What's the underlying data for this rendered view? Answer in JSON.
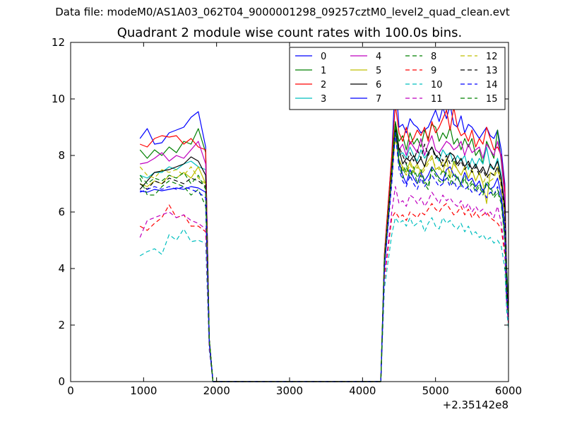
{
  "supertitle": "Data file: modeM0/AS1A03_062T04_9000001298_09257cztM0_level2_quad_clean.evt",
  "chart_data": {
    "type": "line",
    "title": "Quadrant 2 module wise count rates with 100.0s bins.",
    "xlabel": "",
    "ylabel": "",
    "xlim": [
      0,
      6000
    ],
    "ylim": [
      0,
      12
    ],
    "x_offset_label": "+2.35142e8",
    "xticks": [
      0,
      1000,
      2000,
      3000,
      4000,
      5000,
      6000
    ],
    "yticks": [
      0,
      2,
      4,
      6,
      8,
      10,
      12
    ],
    "grid": false,
    "legend_position": "top-right",
    "legend_columns": 4,
    "x": [
      950,
      1050,
      1150,
      1250,
      1350,
      1450,
      1550,
      1650,
      1750,
      1850,
      1900,
      1950,
      2000,
      2100,
      2500,
      3000,
      3500,
      4000,
      4250,
      4300,
      4400,
      4450,
      4500,
      4550,
      4600,
      4650,
      4700,
      4750,
      4800,
      4850,
      4900,
      4950,
      5000,
      5050,
      5100,
      5150,
      5200,
      5250,
      5300,
      5350,
      5400,
      5450,
      5500,
      5550,
      5600,
      5650,
      5700,
      5750,
      5800,
      5850,
      5900,
      5950,
      5975,
      6000
    ],
    "series": [
      {
        "name": "0",
        "color": "#0000ff",
        "dash": "solid",
        "values": [
          8.6,
          8.95,
          8.4,
          8.45,
          8.8,
          8.9,
          9.0,
          9.35,
          9.55,
          8.3,
          1.5,
          0,
          0,
          0,
          0,
          0,
          0,
          0,
          0,
          4.5,
          8.0,
          10.8,
          9.0,
          9.1,
          8.8,
          9.3,
          9.1,
          9.0,
          8.8,
          8.9,
          9.0,
          9.3,
          9.6,
          9.2,
          9.7,
          9.3,
          9.8,
          9.1,
          9.0,
          9.4,
          8.8,
          9.1,
          9.0,
          8.8,
          8.6,
          8.8,
          9.0,
          8.7,
          8.6,
          8.9,
          8.2,
          7.0,
          4.0,
          2.8
        ]
      },
      {
        "name": "1",
        "color": "#008000",
        "dash": "solid",
        "values": [
          8.2,
          7.9,
          8.2,
          8.0,
          8.3,
          8.1,
          8.5,
          8.4,
          8.95,
          8.1,
          1.5,
          0,
          0,
          0,
          0,
          0,
          0,
          0,
          0,
          4.4,
          7.8,
          9.2,
          8.5,
          8.7,
          8.2,
          8.8,
          8.4,
          8.6,
          8.3,
          8.9,
          8.6,
          9.1,
          9.0,
          8.5,
          8.8,
          8.6,
          9.0,
          8.4,
          8.6,
          8.2,
          8.6,
          8.3,
          8.6,
          8.0,
          8.2,
          7.7,
          8.5,
          8.2,
          7.9,
          8.9,
          7.8,
          6.5,
          4.0,
          2.8
        ]
      },
      {
        "name": "2",
        "color": "#ff0000",
        "dash": "solid",
        "values": [
          8.4,
          8.3,
          8.6,
          8.7,
          8.65,
          8.7,
          8.4,
          8.6,
          8.3,
          8.2,
          1.5,
          0,
          0,
          0,
          0,
          0,
          0,
          0,
          0,
          4.5,
          8.0,
          9.8,
          8.8,
          8.5,
          9.0,
          8.4,
          8.6,
          8.9,
          8.7,
          9.0,
          8.5,
          9.2,
          8.8,
          9.0,
          9.3,
          9.6,
          8.9,
          9.7,
          9.0,
          8.7,
          8.8,
          8.5,
          8.9,
          8.3,
          8.6,
          8.4,
          9.0,
          8.6,
          8.2,
          8.3,
          8.0,
          6.8,
          3.5,
          2.6
        ]
      },
      {
        "name": "3",
        "color": "#00bfbf",
        "dash": "solid",
        "values": [
          7.3,
          7.2,
          7.4,
          7.4,
          7.6,
          7.5,
          7.7,
          7.8,
          7.6,
          7.5,
          1.5,
          0,
          0,
          0,
          0,
          0,
          0,
          0,
          0,
          4.3,
          7.5,
          9.0,
          8.0,
          8.1,
          7.9,
          8.3,
          8.0,
          7.8,
          8.2,
          7.9,
          8.1,
          8.3,
          8.0,
          7.8,
          8.2,
          8.0,
          8.1,
          7.7,
          8.0,
          7.8,
          8.0,
          7.5,
          7.9,
          7.6,
          7.9,
          7.7,
          8.3,
          7.6,
          7.5,
          7.9,
          7.3,
          6.0,
          3.2,
          2.3
        ]
      },
      {
        "name": "4",
        "color": "#bf00bf",
        "dash": "solid",
        "values": [
          7.7,
          7.75,
          7.9,
          8.1,
          7.8,
          8.0,
          7.9,
          8.2,
          8.5,
          7.7,
          1.5,
          0,
          0,
          0,
          0,
          0,
          0,
          0,
          0,
          4.2,
          7.5,
          9.0,
          8.2,
          8.4,
          8.0,
          8.5,
          8.3,
          8.1,
          8.6,
          8.0,
          8.4,
          8.7,
          8.2,
          8.1,
          8.3,
          8.5,
          8.4,
          8.2,
          8.3,
          8.5,
          8.0,
          8.4,
          8.1,
          8.2,
          8.3,
          7.9,
          8.4,
          8.2,
          8.0,
          8.5,
          7.9,
          6.5,
          3.6,
          2.5
        ]
      },
      {
        "name": "5",
        "color": "#bfbf00",
        "dash": "solid",
        "values": [
          7.0,
          6.9,
          7.1,
          7.0,
          7.3,
          7.2,
          7.4,
          7.2,
          7.6,
          7.0,
          1.5,
          0,
          0,
          0,
          0,
          0,
          0,
          0,
          0,
          4.1,
          7.2,
          8.9,
          7.8,
          7.6,
          7.4,
          7.8,
          7.5,
          7.7,
          7.4,
          7.6,
          7.8,
          8.0,
          7.5,
          7.6,
          7.4,
          7.9,
          7.2,
          7.8,
          7.5,
          7.3,
          7.6,
          7.2,
          7.5,
          7.1,
          7.4,
          7.0,
          6.3,
          7.4,
          7.3,
          7.6,
          7.0,
          6.0,
          3.4,
          2.3
        ]
      },
      {
        "name": "6",
        "color": "#000000",
        "dash": "solid",
        "values": [
          6.8,
          7.1,
          7.4,
          7.45,
          7.5,
          7.6,
          7.7,
          7.95,
          7.8,
          7.3,
          1.5,
          0,
          0,
          0,
          0,
          0,
          0,
          0,
          0,
          4.2,
          7.5,
          9.1,
          8.2,
          7.7,
          7.9,
          7.8,
          8.0,
          7.7,
          7.9,
          7.6,
          8.1,
          8.3,
          8.0,
          7.9,
          7.6,
          7.8,
          8.1,
          8.0,
          7.7,
          7.9,
          7.6,
          7.8,
          7.5,
          7.7,
          7.4,
          7.6,
          7.3,
          7.7,
          7.5,
          7.8,
          7.2,
          6.2,
          3.5,
          2.4
        ]
      },
      {
        "name": "7",
        "color": "#0000ff",
        "dash": "solid",
        "values": [
          6.75,
          6.7,
          6.8,
          6.75,
          6.8,
          6.85,
          6.8,
          6.9,
          6.85,
          6.7,
          1.4,
          0,
          0,
          0,
          0,
          0,
          0,
          0,
          0,
          4.0,
          7.2,
          8.9,
          7.8,
          7.3,
          7.0,
          7.5,
          7.2,
          7.0,
          7.4,
          7.1,
          7.3,
          7.6,
          7.4,
          7.2,
          7.1,
          7.5,
          7.6,
          7.3,
          7.2,
          7.0,
          7.4,
          7.1,
          7.2,
          6.9,
          7.1,
          6.7,
          7.0,
          6.8,
          6.9,
          7.2,
          6.6,
          5.5,
          3.2,
          2.2
        ]
      },
      {
        "name": "8",
        "color": "#008000",
        "dash": "dashed",
        "values": [
          7.2,
          6.6,
          6.6,
          6.9,
          7.1,
          7.0,
          6.9,
          6.6,
          6.8,
          6.2,
          1.4,
          0,
          0,
          0,
          0,
          0,
          0,
          0,
          0,
          4.3,
          7.4,
          9.0,
          7.7,
          7.2,
          7.6,
          7.2,
          7.5,
          7.0,
          7.3,
          7.0,
          6.8,
          7.5,
          7.3,
          7.1,
          7.0,
          7.4,
          7.2,
          7.0,
          7.3,
          6.9,
          7.2,
          6.8,
          7.0,
          6.7,
          6.9,
          6.6,
          7.0,
          6.8,
          6.5,
          6.7,
          6.3,
          5.0,
          3.0,
          2.3
        ]
      },
      {
        "name": "9",
        "color": "#ff0000",
        "dash": "dashed",
        "values": [
          5.5,
          5.35,
          5.6,
          5.8,
          6.25,
          5.8,
          5.9,
          5.5,
          5.5,
          5.3,
          1.2,
          0,
          0,
          0,
          0,
          0,
          0,
          0,
          0,
          3.6,
          5.8,
          6.0,
          5.8,
          5.9,
          5.7,
          6.0,
          5.9,
          5.8,
          6.0,
          5.9,
          6.1,
          6.3,
          6.1,
          6.0,
          6.2,
          6.3,
          6.1,
          5.9,
          6.0,
          6.2,
          5.9,
          6.1,
          5.8,
          6.0,
          5.8,
          5.9,
          6.0,
          5.8,
          5.7,
          5.6,
          5.4,
          4.5,
          2.8,
          2.0
        ]
      },
      {
        "name": "10",
        "color": "#00bfbf",
        "dash": "dashed",
        "values": [
          4.45,
          4.6,
          4.7,
          4.5,
          5.2,
          5.0,
          5.4,
          4.95,
          5.0,
          4.9,
          1.1,
          0,
          0,
          0,
          0,
          0,
          0,
          0,
          0,
          3.3,
          5.2,
          5.8,
          5.6,
          5.7,
          5.5,
          5.8,
          5.5,
          5.6,
          5.7,
          5.3,
          5.6,
          5.8,
          5.5,
          5.4,
          5.8,
          5.6,
          5.7,
          5.5,
          5.4,
          5.6,
          5.3,
          5.5,
          5.2,
          5.3,
          5.1,
          5.2,
          5.0,
          5.1,
          4.9,
          5.0,
          4.8,
          4.0,
          2.5,
          1.9
        ]
      },
      {
        "name": "11",
        "color": "#bf00bf",
        "dash": "dashed",
        "values": [
          5.1,
          5.7,
          5.8,
          5.9,
          6.0,
          5.8,
          5.9,
          5.7,
          5.6,
          5.4,
          1.2,
          0,
          0,
          0,
          0,
          0,
          0,
          0,
          0,
          3.7,
          6.0,
          6.9,
          6.3,
          6.4,
          6.2,
          6.6,
          6.5,
          6.3,
          6.5,
          6.2,
          6.4,
          6.7,
          6.5,
          6.3,
          6.6,
          6.4,
          6.5,
          6.3,
          6.2,
          6.4,
          6.1,
          6.3,
          6.0,
          6.2,
          6.0,
          6.1,
          5.9,
          6.0,
          5.8,
          6.2,
          5.6,
          4.7,
          2.8,
          2.1
        ]
      },
      {
        "name": "12",
        "color": "#bfbf00",
        "dash": "dashed",
        "values": [
          7.6,
          7.3,
          7.2,
          7.5,
          7.4,
          7.5,
          7.3,
          7.6,
          7.2,
          7.0,
          1.5,
          0,
          0,
          0,
          0,
          0,
          0,
          0,
          0,
          4.2,
          7.3,
          8.6,
          7.9,
          7.5,
          7.3,
          7.7,
          7.4,
          7.6,
          7.3,
          7.5,
          7.7,
          7.9,
          7.6,
          7.5,
          7.8,
          7.6,
          7.4,
          7.7,
          7.5,
          7.3,
          7.6,
          7.2,
          7.5,
          7.1,
          7.4,
          7.0,
          7.3,
          7.1,
          7.2,
          7.5,
          6.9,
          5.8,
          3.3,
          2.3
        ]
      },
      {
        "name": "13",
        "color": "#000000",
        "dash": "dashed",
        "values": [
          7.0,
          6.8,
          7.1,
          7.0,
          7.2,
          7.1,
          7.0,
          7.2,
          7.1,
          6.9,
          1.5,
          0,
          0,
          0,
          0,
          0,
          0,
          0,
          0,
          4.2,
          7.4,
          8.9,
          8.3,
          8.0,
          7.7,
          8.1,
          7.8,
          8.2,
          7.9,
          8.4,
          8.0,
          8.3,
          7.9,
          8.1,
          7.8,
          8.0,
          7.7,
          7.9,
          7.6,
          7.8,
          7.5,
          7.7,
          7.4,
          7.6,
          7.3,
          7.5,
          7.2,
          7.4,
          7.3,
          7.6,
          7.0,
          6.0,
          3.4,
          2.4
        ]
      },
      {
        "name": "14",
        "color": "#0000ff",
        "dash": "dashed",
        "values": [
          6.7,
          6.8,
          6.9,
          6.8,
          6.9,
          6.8,
          6.9,
          6.8,
          6.7,
          6.5,
          1.4,
          0,
          0,
          0,
          0,
          0,
          0,
          0,
          0,
          4.0,
          7.0,
          8.8,
          7.5,
          7.1,
          6.9,
          7.3,
          7.0,
          6.8,
          7.2,
          6.9,
          7.1,
          7.3,
          7.1,
          6.9,
          7.0,
          7.2,
          6.9,
          7.1,
          6.8,
          7.0,
          6.8,
          6.9,
          6.7,
          6.8,
          6.6,
          6.8,
          6.5,
          6.7,
          6.6,
          6.9,
          6.4,
          5.3,
          3.1,
          2.2
        ]
      },
      {
        "name": "15",
        "color": "#008000",
        "dash": "dashed",
        "values": [
          7.3,
          7.0,
          7.2,
          7.1,
          7.3,
          7.2,
          7.4,
          7.0,
          7.3,
          6.8,
          1.5,
          0,
          0,
          0,
          0,
          0,
          0,
          0,
          0,
          4.3,
          7.5,
          9.1,
          7.8,
          7.4,
          7.7,
          7.3,
          7.6,
          7.2,
          7.5,
          7.1,
          6.9,
          7.6,
          7.4,
          7.2,
          7.5,
          7.3,
          7.0,
          7.4,
          7.2,
          7.0,
          7.3,
          6.9,
          7.1,
          6.8,
          7.0,
          6.7,
          7.1,
          6.9,
          6.6,
          6.8,
          6.4,
          5.1,
          3.0,
          2.3
        ]
      }
    ]
  }
}
